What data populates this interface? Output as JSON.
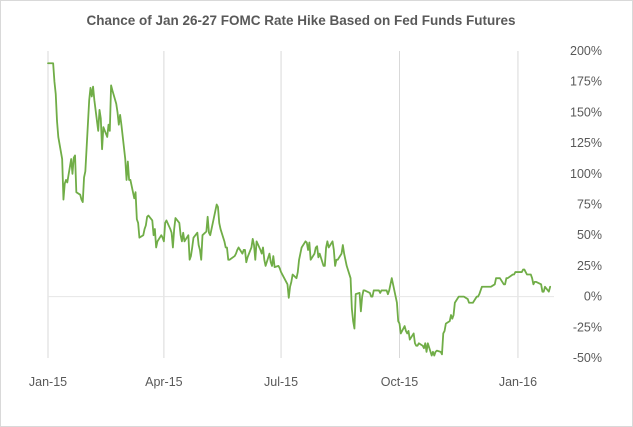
{
  "chart_data": {
    "type": "line",
    "title": "Chance of Jan 26-27 FOMC Rate Hike Based on Fed Funds Futures",
    "xlabel": "",
    "ylabel": "",
    "x_domain": [
      "2015-01-01",
      "2016-01-29"
    ],
    "ylim": [
      -50,
      200
    ],
    "x_tick_labels": [
      {
        "date": "2015-01-01",
        "label": "Jan-15"
      },
      {
        "date": "2015-04-01",
        "label": "Apr-15"
      },
      {
        "date": "2015-07-01",
        "label": "Jul-15"
      },
      {
        "date": "2015-10-01",
        "label": "Oct-15"
      },
      {
        "date": "2016-01-01",
        "label": "Jan-16"
      }
    ],
    "y_ticks": [
      {
        "value": 200,
        "label": "200%"
      },
      {
        "value": 175,
        "label": "175%"
      },
      {
        "value": 150,
        "label": "150%"
      },
      {
        "value": 125,
        "label": "125%"
      },
      {
        "value": 100,
        "label": "100%"
      },
      {
        "value": 75,
        "label": "75%"
      },
      {
        "value": 50,
        "label": "50%"
      },
      {
        "value": 25,
        "label": "25%"
      },
      {
        "value": 0,
        "label": "0%"
      },
      {
        "value": -25,
        "label": "-25%"
      },
      {
        "value": -50,
        "label": "-50%"
      }
    ],
    "vertical_gridlines_at_ticks": true,
    "horizontal_zero_line": true,
    "line_color": "#70ad47",
    "gridline_color": "#d9d9d9",
    "series": [
      {
        "points": [
          [
            "2015-01-01",
            190
          ],
          [
            "2015-01-05",
            190
          ],
          [
            "2015-01-06",
            175
          ],
          [
            "2015-01-07",
            165
          ],
          [
            "2015-01-08",
            143
          ],
          [
            "2015-01-09",
            130
          ],
          [
            "2015-01-12",
            112
          ],
          [
            "2015-01-13",
            79
          ],
          [
            "2015-01-14",
            92
          ],
          [
            "2015-01-15",
            95
          ],
          [
            "2015-01-16",
            93
          ],
          [
            "2015-01-19",
            112
          ],
          [
            "2015-01-20",
            100
          ],
          [
            "2015-01-21",
            113
          ],
          [
            "2015-01-22",
            115
          ],
          [
            "2015-01-23",
            85
          ],
          [
            "2015-01-26",
            83
          ],
          [
            "2015-01-27",
            79
          ],
          [
            "2015-01-28",
            77
          ],
          [
            "2015-01-29",
            97
          ],
          [
            "2015-01-30",
            102
          ],
          [
            "2015-02-02",
            160
          ],
          [
            "2015-02-03",
            170
          ],
          [
            "2015-02-04",
            163
          ],
          [
            "2015-02-05",
            171
          ],
          [
            "2015-02-06",
            160
          ],
          [
            "2015-02-09",
            135
          ],
          [
            "2015-02-10",
            152
          ],
          [
            "2015-02-11",
            145
          ],
          [
            "2015-02-12",
            120
          ],
          [
            "2015-02-13",
            138
          ],
          [
            "2015-02-16",
            130
          ],
          [
            "2015-02-17",
            140
          ],
          [
            "2015-02-18",
            135
          ],
          [
            "2015-02-19",
            172
          ],
          [
            "2015-02-20",
            168
          ],
          [
            "2015-02-23",
            157
          ],
          [
            "2015-02-24",
            150
          ],
          [
            "2015-02-25",
            140
          ],
          [
            "2015-02-26",
            148
          ],
          [
            "2015-02-27",
            140
          ],
          [
            "2015-03-02",
            112
          ],
          [
            "2015-03-03",
            95
          ],
          [
            "2015-03-04",
            110
          ],
          [
            "2015-03-05",
            95
          ],
          [
            "2015-03-06",
            95
          ],
          [
            "2015-03-09",
            80
          ],
          [
            "2015-03-10",
            85
          ],
          [
            "2015-03-11",
            63
          ],
          [
            "2015-03-12",
            60
          ],
          [
            "2015-03-13",
            48
          ],
          [
            "2015-03-16",
            50
          ],
          [
            "2015-03-17",
            55
          ],
          [
            "2015-03-18",
            58
          ],
          [
            "2015-03-19",
            65
          ],
          [
            "2015-03-20",
            66
          ],
          [
            "2015-03-23",
            62
          ],
          [
            "2015-03-24",
            50
          ],
          [
            "2015-03-25",
            55
          ],
          [
            "2015-03-26",
            40
          ],
          [
            "2015-03-27",
            45
          ],
          [
            "2015-03-30",
            50
          ],
          [
            "2015-03-31",
            48
          ],
          [
            "2015-04-01",
            45
          ],
          [
            "2015-04-02",
            60
          ],
          [
            "2015-04-03",
            62
          ],
          [
            "2015-04-06",
            55
          ],
          [
            "2015-04-07",
            52
          ],
          [
            "2015-04-08",
            40
          ],
          [
            "2015-04-09",
            55
          ],
          [
            "2015-04-10",
            64
          ],
          [
            "2015-04-13",
            60
          ],
          [
            "2015-04-14",
            50
          ],
          [
            "2015-04-15",
            45
          ],
          [
            "2015-04-16",
            52
          ],
          [
            "2015-04-17",
            45
          ],
          [
            "2015-04-20",
            50
          ],
          [
            "2015-04-21",
            30
          ],
          [
            "2015-04-22",
            33
          ],
          [
            "2015-04-23",
            40
          ],
          [
            "2015-04-24",
            48
          ],
          [
            "2015-04-27",
            52
          ],
          [
            "2015-04-28",
            42
          ],
          [
            "2015-04-29",
            38
          ],
          [
            "2015-04-30",
            30
          ],
          [
            "2015-05-01",
            50
          ],
          [
            "2015-05-04",
            53
          ],
          [
            "2015-05-05",
            65
          ],
          [
            "2015-05-06",
            52
          ],
          [
            "2015-05-07",
            50
          ],
          [
            "2015-05-08",
            55
          ],
          [
            "2015-05-11",
            70
          ],
          [
            "2015-05-12",
            75
          ],
          [
            "2015-05-13",
            73
          ],
          [
            "2015-05-14",
            60
          ],
          [
            "2015-05-15",
            55
          ],
          [
            "2015-05-18",
            45
          ],
          [
            "2015-05-19",
            40
          ],
          [
            "2015-05-20",
            40
          ],
          [
            "2015-05-21",
            30
          ],
          [
            "2015-05-22",
            30
          ],
          [
            "2015-05-26",
            33
          ],
          [
            "2015-05-27",
            35
          ],
          [
            "2015-05-28",
            38
          ],
          [
            "2015-05-29",
            40
          ],
          [
            "2015-06-01",
            35
          ],
          [
            "2015-06-02",
            38
          ],
          [
            "2015-06-03",
            38
          ],
          [
            "2015-06-04",
            28
          ],
          [
            "2015-06-05",
            32
          ],
          [
            "2015-06-08",
            40
          ],
          [
            "2015-06-09",
            47
          ],
          [
            "2015-06-10",
            42
          ],
          [
            "2015-06-11",
            30
          ],
          [
            "2015-06-12",
            45
          ],
          [
            "2015-06-15",
            38
          ],
          [
            "2015-06-16",
            35
          ],
          [
            "2015-06-17",
            40
          ],
          [
            "2015-06-18",
            30
          ],
          [
            "2015-06-19",
            25
          ],
          [
            "2015-06-22",
            35
          ],
          [
            "2015-06-23",
            28
          ],
          [
            "2015-06-24",
            25
          ],
          [
            "2015-06-25",
            33
          ],
          [
            "2015-06-26",
            24
          ],
          [
            "2015-06-29",
            25
          ],
          [
            "2015-06-30",
            23
          ],
          [
            "2015-07-01",
            20
          ],
          [
            "2015-07-06",
            10
          ],
          [
            "2015-07-07",
            -1
          ],
          [
            "2015-07-08",
            8
          ],
          [
            "2015-07-09",
            12
          ],
          [
            "2015-07-10",
            18
          ],
          [
            "2015-07-13",
            15
          ],
          [
            "2015-07-14",
            20
          ],
          [
            "2015-07-15",
            30
          ],
          [
            "2015-07-16",
            35
          ],
          [
            "2015-07-17",
            40
          ],
          [
            "2015-07-20",
            45
          ],
          [
            "2015-07-21",
            44
          ],
          [
            "2015-07-22",
            38
          ],
          [
            "2015-07-23",
            44
          ],
          [
            "2015-07-24",
            30
          ],
          [
            "2015-07-27",
            35
          ],
          [
            "2015-07-28",
            40
          ],
          [
            "2015-07-29",
            41
          ],
          [
            "2015-07-30",
            32
          ],
          [
            "2015-07-31",
            35
          ],
          [
            "2015-08-03",
            25
          ],
          [
            "2015-08-04",
            25
          ],
          [
            "2015-08-05",
            40
          ],
          [
            "2015-08-06",
            45
          ],
          [
            "2015-08-07",
            40
          ],
          [
            "2015-08-10",
            45
          ],
          [
            "2015-08-11",
            38
          ],
          [
            "2015-08-12",
            25
          ],
          [
            "2015-08-13",
            30
          ],
          [
            "2015-08-14",
            30
          ],
          [
            "2015-08-17",
            35
          ],
          [
            "2015-08-18",
            42
          ],
          [
            "2015-08-19",
            35
          ],
          [
            "2015-08-20",
            30
          ],
          [
            "2015-08-21",
            25
          ],
          [
            "2015-08-24",
            15
          ],
          [
            "2015-08-25",
            -10
          ],
          [
            "2015-08-26",
            -20
          ],
          [
            "2015-08-27",
            -26
          ],
          [
            "2015-08-28",
            2
          ],
          [
            "2015-08-31",
            3
          ],
          [
            "2015-09-01",
            -12
          ],
          [
            "2015-09-02",
            0
          ],
          [
            "2015-09-03",
            5
          ],
          [
            "2015-09-04",
            5
          ],
          [
            "2015-09-08",
            3
          ],
          [
            "2015-09-09",
            0
          ],
          [
            "2015-09-10",
            0
          ],
          [
            "2015-09-11",
            5
          ],
          [
            "2015-09-14",
            5
          ],
          [
            "2015-09-15",
            5
          ],
          [
            "2015-09-16",
            3
          ],
          [
            "2015-09-17",
            5
          ],
          [
            "2015-09-18",
            5
          ],
          [
            "2015-09-21",
            5
          ],
          [
            "2015-09-22",
            2
          ],
          [
            "2015-09-23",
            5
          ],
          [
            "2015-09-24",
            10
          ],
          [
            "2015-09-25",
            15
          ],
          [
            "2015-09-28",
            0
          ],
          [
            "2015-09-29",
            -5
          ],
          [
            "2015-09-30",
            -20
          ],
          [
            "2015-10-01",
            -22
          ],
          [
            "2015-10-02",
            -30
          ],
          [
            "2015-10-05",
            -24
          ],
          [
            "2015-10-06",
            -28
          ],
          [
            "2015-10-07",
            -30
          ],
          [
            "2015-10-08",
            -28
          ],
          [
            "2015-10-09",
            -35
          ],
          [
            "2015-10-12",
            -30
          ],
          [
            "2015-10-13",
            -38
          ],
          [
            "2015-10-14",
            -40
          ],
          [
            "2015-10-15",
            -40
          ],
          [
            "2015-10-16",
            -38
          ],
          [
            "2015-10-19",
            -40
          ],
          [
            "2015-10-20",
            -42
          ],
          [
            "2015-10-21",
            -38
          ],
          [
            "2015-10-22",
            -45
          ],
          [
            "2015-10-23",
            -38
          ],
          [
            "2015-10-26",
            -48
          ],
          [
            "2015-10-27",
            -45
          ],
          [
            "2015-10-28",
            -48
          ],
          [
            "2015-10-29",
            -45
          ],
          [
            "2015-10-30",
            -44
          ],
          [
            "2015-11-02",
            -45
          ],
          [
            "2015-11-03",
            -47
          ],
          [
            "2015-11-04",
            -30
          ],
          [
            "2015-11-05",
            -28
          ],
          [
            "2015-11-06",
            -22
          ],
          [
            "2015-11-09",
            -20
          ],
          [
            "2015-11-10",
            -15
          ],
          [
            "2015-11-11",
            -18
          ],
          [
            "2015-11-12",
            -15
          ],
          [
            "2015-11-13",
            -5
          ],
          [
            "2015-11-16",
            0
          ],
          [
            "2015-11-17",
            0
          ],
          [
            "2015-11-18",
            0
          ],
          [
            "2015-11-19",
            0
          ],
          [
            "2015-11-20",
            0
          ],
          [
            "2015-11-23",
            -2
          ],
          [
            "2015-11-24",
            -5
          ],
          [
            "2015-11-25",
            -5
          ],
          [
            "2015-11-27",
            -5
          ],
          [
            "2015-11-30",
            0
          ],
          [
            "2015-12-01",
            0
          ],
          [
            "2015-12-02",
            2
          ],
          [
            "2015-12-03",
            5
          ],
          [
            "2015-12-04",
            8
          ],
          [
            "2015-12-07",
            8
          ],
          [
            "2015-12-08",
            8
          ],
          [
            "2015-12-09",
            8
          ],
          [
            "2015-12-10",
            8
          ],
          [
            "2015-12-11",
            8
          ],
          [
            "2015-12-14",
            10
          ],
          [
            "2015-12-15",
            15
          ],
          [
            "2015-12-16",
            15
          ],
          [
            "2015-12-17",
            15
          ],
          [
            "2015-12-18",
            15
          ],
          [
            "2015-12-21",
            10
          ],
          [
            "2015-12-22",
            10
          ],
          [
            "2015-12-23",
            15
          ],
          [
            "2015-12-24",
            15
          ],
          [
            "2015-12-28",
            18
          ],
          [
            "2015-12-29",
            18
          ],
          [
            "2015-12-30",
            20
          ],
          [
            "2015-12-31",
            20
          ],
          [
            "2016-01-04",
            20
          ],
          [
            "2016-01-05",
            22
          ],
          [
            "2016-01-06",
            22
          ],
          [
            "2016-01-07",
            20
          ],
          [
            "2016-01-08",
            18
          ],
          [
            "2016-01-11",
            18
          ],
          [
            "2016-01-12",
            15
          ],
          [
            "2016-01-13",
            10
          ],
          [
            "2016-01-14",
            12
          ],
          [
            "2016-01-15",
            12
          ],
          [
            "2016-01-19",
            10
          ],
          [
            "2016-01-20",
            4
          ],
          [
            "2016-01-21",
            4
          ],
          [
            "2016-01-22",
            8
          ],
          [
            "2016-01-25",
            4
          ],
          [
            "2016-01-26",
            8
          ]
        ]
      }
    ]
  }
}
